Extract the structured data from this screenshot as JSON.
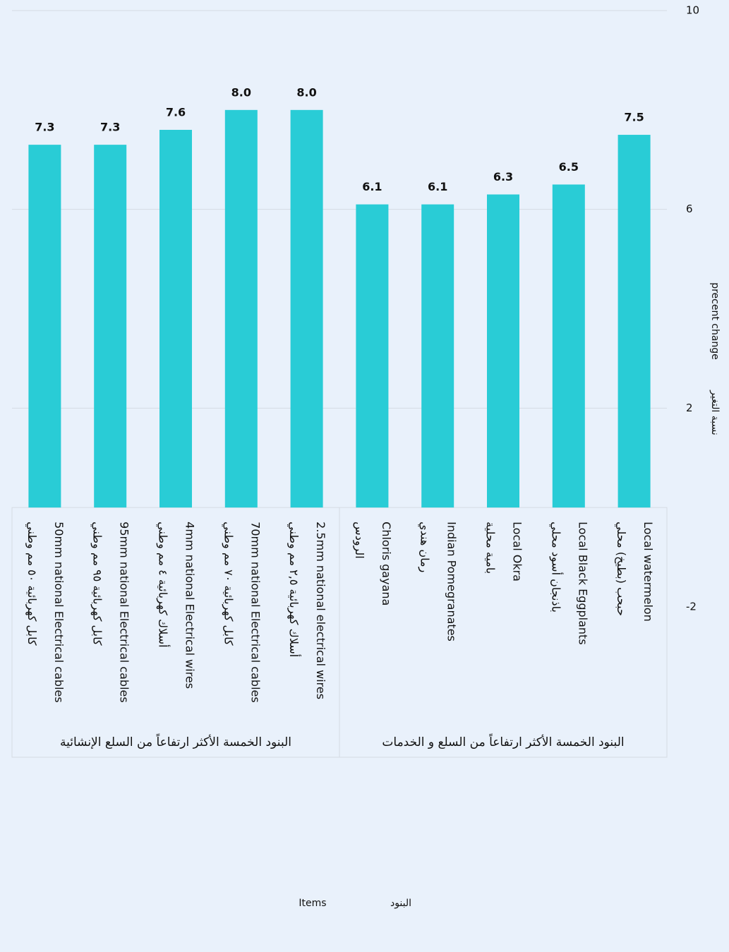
{
  "chart_data": {
    "type": "bar",
    "categories": [
      [
        "50mm national Electrical cables",
        "كابل كهربائية ٥٠ مم وطني"
      ],
      [
        "95mm national Electrical cables",
        "كابل كهربائية ٩٥ مم وطني"
      ],
      [
        "4mm national Electrical wires",
        "أسلاك كهربائية ٤ مم وطني"
      ],
      [
        "70mm national Electrical cables",
        "كابل كهربائية ٧٠ مم وطني"
      ],
      [
        "2.5mm national electrical wires",
        "أسلاك كهربائية ٢,٥ مم وطني"
      ],
      [
        "Chloris gayana",
        "الرودس"
      ],
      [
        "Indian Pomegranates",
        "رمان هندي"
      ],
      [
        "Local Okra",
        "بامية محلية"
      ],
      [
        "Local Black Eggplants",
        "باذنجان أسود محلي"
      ],
      [
        "Local watermelon",
        "حبحب (بطيخ) محلي"
      ]
    ],
    "group_labels": [
      "البنود الخمسة الأكثر ارتفاعاً من السلع الإنشائية",
      "البنود الخمسة الأكثر ارتفاعاً من السلع و الخدمات"
    ],
    "values": [
      7.3,
      7.3,
      7.6,
      8.0,
      8.0,
      6.1,
      6.1,
      6.3,
      6.5,
      7.5
    ],
    "value_labels": [
      "7.3",
      "7.3",
      "7.6",
      "8.0",
      "8.0",
      "6.1",
      "6.1",
      "6.3",
      "6.5",
      "7.5"
    ],
    "color": "#29ccd6",
    "ylim": [
      -2,
      10
    ],
    "yticks": [
      -2,
      2,
      6,
      10
    ],
    "grid": true,
    "y_label": [
      "precent change",
      "نسبة التغير"
    ],
    "x_label": [
      "Items",
      "البنود"
    ]
  }
}
